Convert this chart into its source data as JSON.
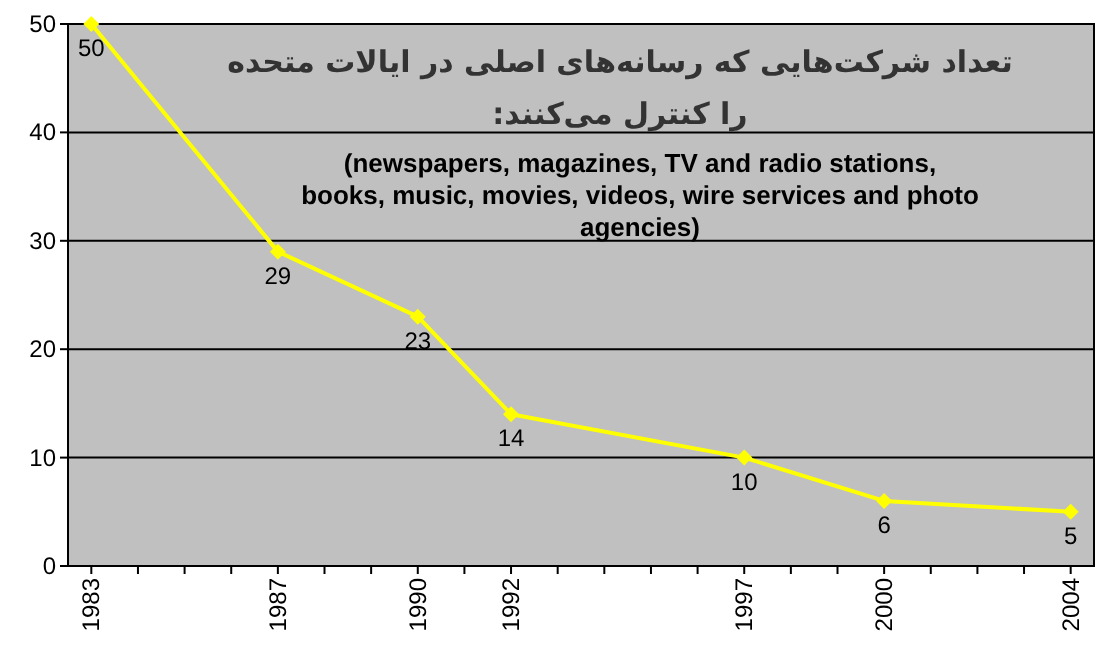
{
  "chart_data": {
    "type": "line",
    "title": "تعداد شرکت‌هایی که رسانه‌های اصلی در ایالات متحده را کنترل می‌کنند:",
    "subtitle": "(newspapers, magazines, TV and radio stations, books, music, movies, videos, wire services and photo agencies)",
    "x": [
      1983,
      1987,
      1990,
      1992,
      1997,
      2000,
      2004
    ],
    "series": [
      {
        "color": "#ffff00",
        "values": [
          50,
          29,
          23,
          14,
          10,
          6,
          5
        ]
      }
    ],
    "marker": "diamond",
    "data_labels": true,
    "grid": "y",
    "ylim": [
      0,
      50
    ],
    "yticks": [
      0,
      10,
      20,
      30,
      40,
      50
    ],
    "xlim": [
      1982.5,
      2004.5
    ],
    "xticks": [
      1983,
      {
        "value": 1984,
        "label": null
      },
      {
        "value": 1985,
        "label": null
      },
      {
        "value": 1986,
        "label": null
      },
      1987,
      {
        "value": 1988,
        "label": null
      },
      {
        "value": 1989,
        "label": null
      },
      1990,
      {
        "value": 1991,
        "label": null
      },
      1992,
      {
        "value": 1993,
        "label": null
      },
      {
        "value": 1994,
        "label": null
      },
      {
        "value": 1995,
        "label": null
      },
      {
        "value": 1996,
        "label": null
      },
      1997,
      {
        "value": 1998,
        "label": null
      },
      {
        "value": 1999,
        "label": null
      },
      2000,
      {
        "value": 2001,
        "label": null
      },
      {
        "value": 2002,
        "label": null
      },
      {
        "value": 2003,
        "label": null
      },
      2004
    ]
  }
}
